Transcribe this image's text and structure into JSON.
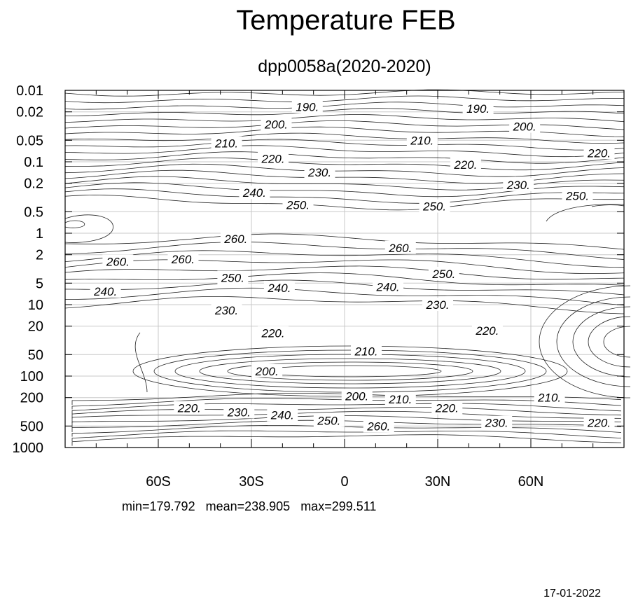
{
  "chart_data": {
    "type": "contour",
    "title": "Temperature FEB",
    "subtitle": "dpp0058a(2020-2020)",
    "xlabel": "",
    "ylabel": "",
    "x_ticks": [
      "60S",
      "30S",
      "0",
      "30N",
      "60N"
    ],
    "x_tick_values": [
      -60,
      -30,
      0,
      30,
      60
    ],
    "xlim": [
      -90,
      90
    ],
    "y_ticks": [
      "0.01",
      "0.02",
      "0.05",
      "0.1",
      "0.2",
      "0.5",
      "1",
      "2",
      "5",
      "10",
      "20",
      "50",
      "100",
      "200",
      "500",
      "1000"
    ],
    "y_tick_values": [
      0.01,
      0.02,
      0.05,
      0.1,
      0.2,
      0.5,
      1,
      2,
      5,
      10,
      20,
      50,
      100,
      200,
      500,
      1000
    ],
    "ylim": [
      0.01,
      1000
    ],
    "y_scale": "log",
    "y_inverted": true,
    "grid": true,
    "contour_interval": 5,
    "contour_labels": [
      {
        "text": "190.",
        "x": -12,
        "p": 0.017
      },
      {
        "text": "190.",
        "x": 43,
        "p": 0.018
      },
      {
        "text": "200.",
        "x": -22,
        "p": 0.03
      },
      {
        "text": "200.",
        "x": 58,
        "p": 0.032
      },
      {
        "text": "210.",
        "x": -38,
        "p": 0.055
      },
      {
        "text": "210.",
        "x": 25,
        "p": 0.05
      },
      {
        "text": "220.",
        "x": -23,
        "p": 0.09
      },
      {
        "text": "220.",
        "x": 39,
        "p": 0.11
      },
      {
        "text": "220.",
        "x": 82,
        "p": 0.075
      },
      {
        "text": "230.",
        "x": -8,
        "p": 0.14
      },
      {
        "text": "230.",
        "x": 56,
        "p": 0.21
      },
      {
        "text": "240.",
        "x": -29,
        "p": 0.27
      },
      {
        "text": "250.",
        "x": -15,
        "p": 0.4
      },
      {
        "text": "250.",
        "x": 29,
        "p": 0.42
      },
      {
        "text": "250.",
        "x": 75,
        "p": 0.3
      },
      {
        "text": "260.",
        "x": -35,
        "p": 1.2
      },
      {
        "text": "260.",
        "x": 18,
        "p": 1.6
      },
      {
        "text": "260.",
        "x": -73,
        "p": 2.5
      },
      {
        "text": "260.",
        "x": -52,
        "p": 2.3
      },
      {
        "text": "250.",
        "x": -36,
        "p": 4.2
      },
      {
        "text": "250.",
        "x": 32,
        "p": 3.7
      },
      {
        "text": "240.",
        "x": -77,
        "p": 6.5
      },
      {
        "text": "240.",
        "x": -21,
        "p": 5.8
      },
      {
        "text": "240.",
        "x": 14,
        "p": 5.6
      },
      {
        "text": "230.",
        "x": -38,
        "p": 12
      },
      {
        "text": "230.",
        "x": 30,
        "p": 10
      },
      {
        "text": "220.",
        "x": -23,
        "p": 25
      },
      {
        "text": "220.",
        "x": 46,
        "p": 23
      },
      {
        "text": "210.",
        "x": 7,
        "p": 45
      },
      {
        "text": "200.",
        "x": -25,
        "p": 85
      },
      {
        "text": "200.",
        "x": 4,
        "p": 190
      },
      {
        "text": "210.",
        "x": 18,
        "p": 210
      },
      {
        "text": "210.",
        "x": 66,
        "p": 200
      },
      {
        "text": "220.",
        "x": -50,
        "p": 280
      },
      {
        "text": "220.",
        "x": 33,
        "p": 280
      },
      {
        "text": "220.",
        "x": 82,
        "p": 450
      },
      {
        "text": "230.",
        "x": -34,
        "p": 320
      },
      {
        "text": "230.",
        "x": 49,
        "p": 450
      },
      {
        "text": "240.",
        "x": -20,
        "p": 350
      },
      {
        "text": "250.",
        "x": -5,
        "p": 420
      },
      {
        "text": "260.",
        "x": 11,
        "p": 500
      }
    ],
    "stats": {
      "min": 179.792,
      "mean": 238.905,
      "max": 299.511
    }
  },
  "footer": {
    "stats_text": "min=179.792   mean=238.905   max=299.511",
    "date": "17-01-2022"
  }
}
